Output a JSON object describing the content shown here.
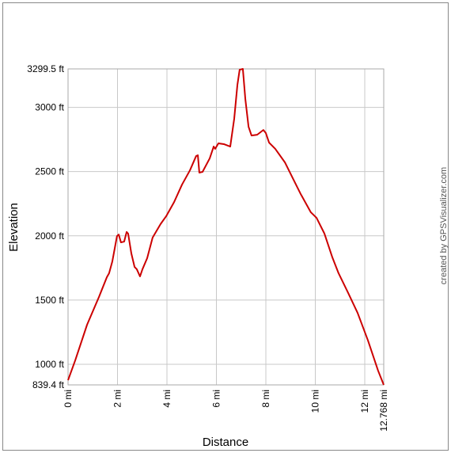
{
  "chart_data": {
    "type": "line",
    "x_label": "Distance",
    "y_label": "Elevation",
    "annotation": "created by GPSVisualizer.com",
    "xlim": [
      0,
      12.768
    ],
    "ylim": [
      839.4,
      3299.5
    ],
    "xticks": [
      {
        "value": 0,
        "label": "0 mi"
      },
      {
        "value": 2,
        "label": "2 mi"
      },
      {
        "value": 4,
        "label": "4 mi"
      },
      {
        "value": 6,
        "label": "6 mi"
      },
      {
        "value": 8,
        "label": "8 mi"
      },
      {
        "value": 10,
        "label": "10 mi"
      },
      {
        "value": 12,
        "label": "12 mi"
      },
      {
        "value": 12.768,
        "label": "12.768 mi"
      }
    ],
    "yticks": [
      {
        "value": 839.4,
        "label": "839.4 ft"
      },
      {
        "value": 1000,
        "label": "1000 ft"
      },
      {
        "value": 1500,
        "label": "1500 ft"
      },
      {
        "value": 2000,
        "label": "2000 ft"
      },
      {
        "value": 2500,
        "label": "2500 ft"
      },
      {
        "value": 3000,
        "label": "3000 ft"
      },
      {
        "value": 3299.5,
        "label": "3299.5 ft"
      }
    ],
    "grid": true,
    "x": [
      0,
      0.29,
      0.77,
      1.25,
      1.57,
      1.66,
      1.79,
      1.98,
      2.05,
      2.14,
      2.27,
      2.37,
      2.43,
      2.56,
      2.69,
      2.78,
      2.91,
      3.01,
      3.2,
      3.42,
      3.74,
      3.97,
      4.29,
      4.61,
      4.93,
      5.18,
      5.25,
      5.31,
      5.44,
      5.73,
      5.89,
      5.95,
      6.08,
      6.3,
      6.56,
      6.72,
      6.85,
      6.94,
      7.07,
      7.17,
      7.3,
      7.42,
      7.65,
      7.9,
      8.0,
      8.13,
      8.38,
      8.77,
      9.09,
      9.41,
      9.82,
      10.05,
      10.37,
      10.69,
      10.94,
      11.33,
      11.71,
      12.13,
      12.54,
      12.768
    ],
    "series": [
      {
        "name": "Elevation",
        "color": "#cc0000",
        "values": [
          876,
          1030,
          1308,
          1524,
          1678,
          1709,
          1800,
          1998,
          2010,
          1949,
          1955,
          2030,
          2017,
          1863,
          1758,
          1740,
          1684,
          1740,
          1826,
          1986,
          2091,
          2153,
          2263,
          2399,
          2510,
          2621,
          2627,
          2492,
          2498,
          2603,
          2695,
          2677,
          2720,
          2714,
          2695,
          2911,
          3176,
          3293,
          3299.5,
          3065,
          2849,
          2781,
          2787,
          2824,
          2800,
          2726,
          2677,
          2572,
          2448,
          2325,
          2183,
          2140,
          2017,
          1832,
          1709,
          1555,
          1400,
          1185,
          950,
          839.4
        ]
      }
    ]
  }
}
